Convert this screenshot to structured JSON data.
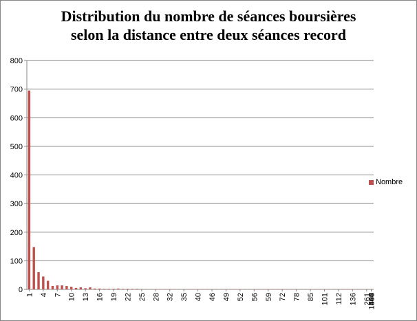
{
  "colors": {
    "bar": "#C0504D",
    "grid": "#868686",
    "axis": "#868686",
    "text": "#000000"
  },
  "chart_data": {
    "type": "bar",
    "title": [
      "Distribution du nombre de séances boursières",
      "selon la distance entre deux séances record"
    ],
    "ylim": [
      0,
      800
    ],
    "yticks": [
      0,
      100,
      200,
      300,
      400,
      500,
      600,
      700,
      800
    ],
    "grid": true,
    "legend_position": "right",
    "categories": [
      "1",
      "2",
      "3",
      "4",
      "5",
      "6",
      "7",
      "8",
      "9",
      "10",
      "11",
      "12",
      "13",
      "14",
      "15",
      "16",
      "17",
      "18",
      "19",
      "20",
      "21",
      "22",
      "23",
      "24",
      "25",
      "26",
      "27",
      "28",
      "29",
      "32",
      "33",
      "34",
      "35",
      "37",
      "39",
      "40",
      "41",
      "44",
      "46",
      "47",
      "48",
      "49",
      "50",
      "51",
      "52",
      "53",
      "54",
      "56",
      "57",
      "58",
      "59",
      "62",
      "69",
      "72",
      "76",
      "78",
      "85",
      "90",
      "99",
      "101",
      "112",
      "136",
      "167",
      "261",
      "290",
      "303",
      "306",
      "314",
      "357",
      "433",
      "480",
      "540",
      "1834",
      "1834"
    ],
    "visible_tick_labels": [
      "1",
      "4",
      "7",
      "10",
      "13",
      "16",
      "19",
      "22",
      "25",
      "28",
      "32",
      "35",
      "40",
      "46",
      "49",
      "52",
      "56",
      "59",
      "72",
      "78",
      "85",
      "101",
      "112",
      "136",
      "261",
      "303",
      "306",
      "433",
      "540",
      "1834"
    ],
    "series": [
      {
        "name": "Nombre",
        "values": [
          695,
          148,
          60,
          45,
          30,
          12,
          14,
          14,
          12,
          9,
          5,
          7,
          4,
          7,
          3,
          3,
          2,
          2,
          2,
          3,
          2,
          2,
          2,
          2,
          1,
          1,
          1,
          1,
          1,
          1,
          1,
          1,
          1,
          1,
          1,
          1,
          1,
          1,
          1,
          1,
          1,
          1,
          1,
          1,
          1,
          1,
          1,
          1,
          1,
          1,
          1,
          1,
          1,
          1,
          1,
          1,
          1,
          1,
          1,
          1,
          1,
          1,
          1,
          1,
          1,
          1,
          1,
          1,
          1,
          1,
          1,
          1,
          1,
          1
        ]
      }
    ]
  }
}
